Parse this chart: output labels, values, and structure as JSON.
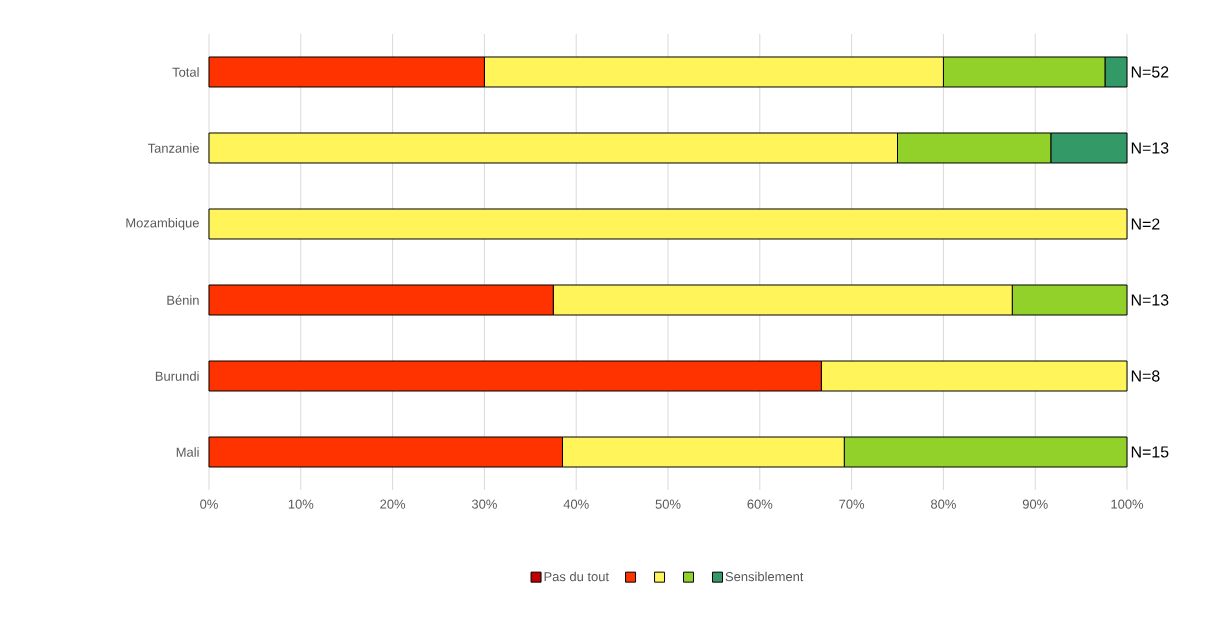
{
  "chart_data": {
    "type": "bar",
    "orientation": "horizontal",
    "stacked": true,
    "categories": [
      "Total",
      "Tanzanie",
      "Mozambique",
      "Bénin",
      "Burundi",
      "Mali"
    ],
    "series": [
      {
        "name": "Pas du tout",
        "color": "#c00000",
        "values": [
          0,
          0,
          0,
          0,
          0,
          0
        ]
      },
      {
        "color": "#ff3300",
        "values": [
          30,
          0,
          0,
          37.5,
          66.7,
          38.5
        ]
      },
      {
        "color": "#fff55a",
        "values": [
          50,
          75,
          100,
          50,
          33.3,
          30.7
        ]
      },
      {
        "color": "#92d12a",
        "values": [
          17.6,
          16.7,
          0,
          12.5,
          0,
          30.8
        ]
      },
      {
        "name": "Sensiblement",
        "color": "#339966",
        "values": [
          2.4,
          8.3,
          0,
          0,
          0,
          0
        ]
      }
    ],
    "xlim": [
      0,
      100
    ],
    "xticks": [
      {
        "value": 0,
        "label": "0%"
      },
      {
        "value": 10,
        "label": "10%"
      },
      {
        "value": 20,
        "label": "20%"
      },
      {
        "value": 30,
        "label": "30%"
      },
      {
        "value": 40,
        "label": "40%"
      },
      {
        "value": 50,
        "label": "50%"
      },
      {
        "value": 60,
        "label": "60%"
      },
      {
        "value": 70,
        "label": "70%"
      },
      {
        "value": 80,
        "label": "80%"
      },
      {
        "value": 90,
        "label": "90%"
      },
      {
        "value": 100,
        "label": "100%"
      }
    ],
    "annotations": [
      "N=52",
      "N=13",
      "N=2",
      "N=13",
      "N=8",
      "N=15"
    ],
    "grid": "x",
    "legend": "bottom"
  }
}
